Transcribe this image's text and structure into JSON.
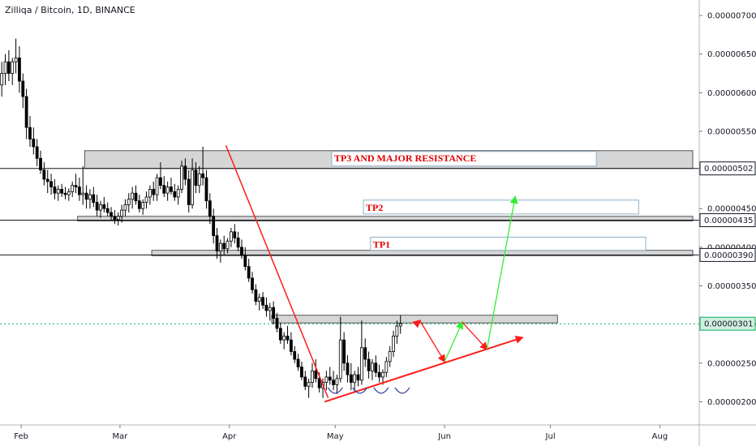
{
  "header": {
    "title": "Zilliqa / Bitcoin, 1D, BINANCE"
  },
  "colors": {
    "up": "#ffffff",
    "down": "#000000",
    "wick": "#000000",
    "red": "#ff1a1a",
    "green": "#33ee33",
    "zone": "#d6d6d6",
    "dotted": "#00b050"
  },
  "chart_data": {
    "type": "candlestick",
    "ylim": [
      1.7e-06,
      7.2e-06
    ],
    "y_ticks": [
      "0.00000200",
      "0.00000250",
      "0.00000300",
      "0.00000350",
      "0.00000400",
      "0.00000450",
      "0.00000550",
      "0.00000600",
      "0.00000650",
      "0.00000700"
    ],
    "x_labels": [
      "Feb",
      "Mar",
      "Apr",
      "May",
      "Jun",
      "Jul",
      "Aug"
    ],
    "x_label_days": [
      6,
      34,
      65,
      95,
      126,
      156,
      187
    ],
    "price_lines": [
      {
        "price": 5.02e-06,
        "label": "0.00000502",
        "style": "solid"
      },
      {
        "price": 4.35e-06,
        "label": "0.00000435",
        "style": "solid"
      },
      {
        "price": 3.9e-06,
        "label": "0.00000390",
        "style": "solid"
      },
      {
        "price": 3.01e-06,
        "label": "0.00000301",
        "style": "dotted-current"
      }
    ],
    "zones": [
      {
        "label": "TP3 AND MAJOR RESISTANCE",
        "day_start": 24,
        "day_end": 207,
        "price_low": 5.02e-06,
        "price_high": 5.25e-06
      },
      {
        "label": "",
        "day_start": 22,
        "day_end": 207,
        "price_low": 4.34e-06,
        "price_high": 4.4e-06
      },
      {
        "label": "",
        "day_start": 43,
        "day_end": 207,
        "price_low": 3.89e-06,
        "price_high": 3.96e-06
      },
      {
        "label": "",
        "day_start": 77,
        "day_end": 158,
        "price_low": 3.02e-06,
        "price_high": 3.12e-06
      }
    ],
    "targets": [
      {
        "label": "TP2",
        "day_start": 103,
        "day_end": 181,
        "price_low": 4.43e-06,
        "price_high": 4.61e-06
      },
      {
        "label": "TP1",
        "day_start": 105,
        "day_end": 183,
        "price_low": 3.96e-06,
        "price_high": 4.13e-06
      }
    ],
    "candles": [
      {
        "o": 610,
        "h": 640,
        "l": 595,
        "c": 625
      },
      {
        "o": 625,
        "h": 650,
        "l": 610,
        "c": 640
      },
      {
        "o": 640,
        "h": 655,
        "l": 615,
        "c": 625
      },
      {
        "o": 625,
        "h": 645,
        "l": 610,
        "c": 640
      },
      {
        "o": 640,
        "h": 670,
        "l": 625,
        "c": 645
      },
      {
        "o": 645,
        "h": 660,
        "l": 600,
        "c": 615
      },
      {
        "o": 615,
        "h": 625,
        "l": 580,
        "c": 595
      },
      {
        "o": 595,
        "h": 605,
        "l": 540,
        "c": 555
      },
      {
        "o": 555,
        "h": 570,
        "l": 530,
        "c": 540
      },
      {
        "o": 540,
        "h": 555,
        "l": 520,
        "c": 530
      },
      {
        "o": 530,
        "h": 540,
        "l": 505,
        "c": 515
      },
      {
        "o": 515,
        "h": 525,
        "l": 495,
        "c": 500
      },
      {
        "o": 500,
        "h": 510,
        "l": 480,
        "c": 488
      },
      {
        "o": 488,
        "h": 500,
        "l": 470,
        "c": 485
      },
      {
        "o": 485,
        "h": 495,
        "l": 468,
        "c": 478
      },
      {
        "o": 478,
        "h": 488,
        "l": 462,
        "c": 470
      },
      {
        "o": 470,
        "h": 480,
        "l": 460,
        "c": 475
      },
      {
        "o": 475,
        "h": 482,
        "l": 465,
        "c": 470
      },
      {
        "o": 470,
        "h": 478,
        "l": 462,
        "c": 468
      },
      {
        "o": 468,
        "h": 476,
        "l": 460,
        "c": 472
      },
      {
        "o": 472,
        "h": 485,
        "l": 465,
        "c": 480
      },
      {
        "o": 480,
        "h": 495,
        "l": 470,
        "c": 478
      },
      {
        "o": 478,
        "h": 490,
        "l": 460,
        "c": 468
      },
      {
        "o": 468,
        "h": 505,
        "l": 455,
        "c": 470
      },
      {
        "o": 470,
        "h": 480,
        "l": 450,
        "c": 462
      },
      {
        "o": 462,
        "h": 475,
        "l": 450,
        "c": 468
      },
      {
        "o": 468,
        "h": 478,
        "l": 452,
        "c": 458
      },
      {
        "o": 458,
        "h": 468,
        "l": 440,
        "c": 448
      },
      {
        "o": 448,
        "h": 460,
        "l": 438,
        "c": 455
      },
      {
        "o": 455,
        "h": 465,
        "l": 445,
        "c": 450
      },
      {
        "o": 450,
        "h": 458,
        "l": 440,
        "c": 445
      },
      {
        "o": 445,
        "h": 452,
        "l": 435,
        "c": 440
      },
      {
        "o": 440,
        "h": 448,
        "l": 430,
        "c": 436
      },
      {
        "o": 436,
        "h": 445,
        "l": 428,
        "c": 440
      },
      {
        "o": 440,
        "h": 455,
        "l": 432,
        "c": 448
      },
      {
        "o": 448,
        "h": 462,
        "l": 440,
        "c": 455
      },
      {
        "o": 455,
        "h": 470,
        "l": 445,
        "c": 462
      },
      {
        "o": 462,
        "h": 478,
        "l": 450,
        "c": 470
      },
      {
        "o": 470,
        "h": 480,
        "l": 455,
        "c": 460
      },
      {
        "o": 460,
        "h": 468,
        "l": 445,
        "c": 450
      },
      {
        "o": 450,
        "h": 462,
        "l": 442,
        "c": 458
      },
      {
        "o": 458,
        "h": 472,
        "l": 450,
        "c": 465
      },
      {
        "o": 465,
        "h": 480,
        "l": 455,
        "c": 475
      },
      {
        "o": 475,
        "h": 485,
        "l": 460,
        "c": 468
      },
      {
        "o": 468,
        "h": 495,
        "l": 460,
        "c": 490
      },
      {
        "o": 490,
        "h": 510,
        "l": 475,
        "c": 480
      },
      {
        "o": 480,
        "h": 492,
        "l": 465,
        "c": 470
      },
      {
        "o": 470,
        "h": 485,
        "l": 460,
        "c": 478
      },
      {
        "o": 478,
        "h": 490,
        "l": 468,
        "c": 472
      },
      {
        "o": 472,
        "h": 482,
        "l": 460,
        "c": 465
      },
      {
        "o": 465,
        "h": 480,
        "l": 455,
        "c": 475
      },
      {
        "o": 475,
        "h": 512,
        "l": 470,
        "c": 505
      },
      {
        "o": 505,
        "h": 515,
        "l": 480,
        "c": 488
      },
      {
        "o": 488,
        "h": 500,
        "l": 445,
        "c": 455
      },
      {
        "o": 455,
        "h": 515,
        "l": 450,
        "c": 500
      },
      {
        "o": 500,
        "h": 510,
        "l": 470,
        "c": 480
      },
      {
        "o": 480,
        "h": 505,
        "l": 470,
        "c": 495
      },
      {
        "o": 495,
        "h": 530,
        "l": 480,
        "c": 490
      },
      {
        "o": 490,
        "h": 500,
        "l": 450,
        "c": 460
      },
      {
        "o": 460,
        "h": 470,
        "l": 430,
        "c": 440
      },
      {
        "o": 440,
        "h": 450,
        "l": 405,
        "c": 415
      },
      {
        "o": 415,
        "h": 425,
        "l": 385,
        "c": 395
      },
      {
        "o": 395,
        "h": 410,
        "l": 380,
        "c": 405
      },
      {
        "o": 405,
        "h": 415,
        "l": 390,
        "c": 398
      },
      {
        "o": 398,
        "h": 412,
        "l": 392,
        "c": 408
      },
      {
        "o": 408,
        "h": 425,
        "l": 400,
        "c": 420
      },
      {
        "o": 420,
        "h": 430,
        "l": 405,
        "c": 412
      },
      {
        "o": 412,
        "h": 420,
        "l": 395,
        "c": 400
      },
      {
        "o": 400,
        "h": 410,
        "l": 385,
        "c": 390
      },
      {
        "o": 390,
        "h": 400,
        "l": 370,
        "c": 375
      },
      {
        "o": 375,
        "h": 385,
        "l": 355,
        "c": 360
      },
      {
        "o": 360,
        "h": 368,
        "l": 340,
        "c": 345
      },
      {
        "o": 345,
        "h": 352,
        "l": 325,
        "c": 330
      },
      {
        "o": 330,
        "h": 340,
        "l": 318,
        "c": 335
      },
      {
        "o": 335,
        "h": 342,
        "l": 320,
        "c": 325
      },
      {
        "o": 325,
        "h": 335,
        "l": 310,
        "c": 318
      },
      {
        "o": 318,
        "h": 328,
        "l": 305,
        "c": 322
      },
      {
        "o": 322,
        "h": 330,
        "l": 300,
        "c": 308
      },
      {
        "o": 308,
        "h": 315,
        "l": 290,
        "c": 295
      },
      {
        "o": 295,
        "h": 302,
        "l": 275,
        "c": 280
      },
      {
        "o": 280,
        "h": 290,
        "l": 268,
        "c": 285
      },
      {
        "o": 285,
        "h": 298,
        "l": 275,
        "c": 280
      },
      {
        "o": 280,
        "h": 290,
        "l": 260,
        "c": 265
      },
      {
        "o": 265,
        "h": 272,
        "l": 250,
        "c": 255
      },
      {
        "o": 255,
        "h": 262,
        "l": 240,
        "c": 245
      },
      {
        "o": 245,
        "h": 252,
        "l": 228,
        "c": 232
      },
      {
        "o": 232,
        "h": 240,
        "l": 215,
        "c": 220
      },
      {
        "o": 220,
        "h": 230,
        "l": 205,
        "c": 225
      },
      {
        "o": 225,
        "h": 250,
        "l": 218,
        "c": 240
      },
      {
        "o": 240,
        "h": 255,
        "l": 225,
        "c": 230
      },
      {
        "o": 230,
        "h": 238,
        "l": 212,
        "c": 218
      },
      {
        "o": 218,
        "h": 230,
        "l": 205,
        "c": 225
      },
      {
        "o": 225,
        "h": 240,
        "l": 215,
        "c": 232
      },
      {
        "o": 232,
        "h": 245,
        "l": 222,
        "c": 228
      },
      {
        "o": 228,
        "h": 240,
        "l": 215,
        "c": 222
      },
      {
        "o": 222,
        "h": 235,
        "l": 210,
        "c": 230
      },
      {
        "o": 230,
        "h": 310,
        "l": 225,
        "c": 280
      },
      {
        "o": 280,
        "h": 290,
        "l": 240,
        "c": 250
      },
      {
        "o": 250,
        "h": 260,
        "l": 225,
        "c": 235
      },
      {
        "o": 235,
        "h": 250,
        "l": 215,
        "c": 225
      },
      {
        "o": 225,
        "h": 240,
        "l": 212,
        "c": 235
      },
      {
        "o": 235,
        "h": 245,
        "l": 220,
        "c": 228
      },
      {
        "o": 228,
        "h": 305,
        "l": 222,
        "c": 270
      },
      {
        "o": 270,
        "h": 282,
        "l": 245,
        "c": 255
      },
      {
        "o": 255,
        "h": 265,
        "l": 230,
        "c": 240
      },
      {
        "o": 240,
        "h": 255,
        "l": 228,
        "c": 250
      },
      {
        "o": 250,
        "h": 260,
        "l": 232,
        "c": 238
      },
      {
        "o": 238,
        "h": 248,
        "l": 225,
        "c": 232
      },
      {
        "o": 232,
        "h": 242,
        "l": 222,
        "c": 238
      },
      {
        "o": 238,
        "h": 258,
        "l": 232,
        "c": 252
      },
      {
        "o": 252,
        "h": 272,
        "l": 245,
        "c": 265
      },
      {
        "o": 265,
        "h": 292,
        "l": 258,
        "c": 285
      },
      {
        "o": 285,
        "h": 305,
        "l": 275,
        "c": 298
      },
      {
        "o": 298,
        "h": 312,
        "l": 288,
        "c": 301
      }
    ],
    "red_down_trend": {
      "from_day": 64,
      "from_price": 5.32e-06,
      "to_day": 93,
      "to_price": 2.05e-06
    },
    "red_support_arrow": {
      "from_day": 92,
      "from_price": 2e-06,
      "to_day": 148,
      "to_price": 2.83e-06
    },
    "red_path": [
      {
        "day": 119,
        "price": 3.05e-06,
        "color": "red"
      },
      {
        "day": 126,
        "price": 2.52e-06,
        "color": "red"
      },
      {
        "day": 131,
        "price": 3.03e-06,
        "color": "green"
      },
      {
        "day": 138,
        "price": 2.68e-06,
        "color": "red"
      },
      {
        "day": 146,
        "price": 4.65e-06,
        "color": "green"
      }
    ],
    "arcs_days": [
      95,
      102,
      108,
      114
    ]
  }
}
